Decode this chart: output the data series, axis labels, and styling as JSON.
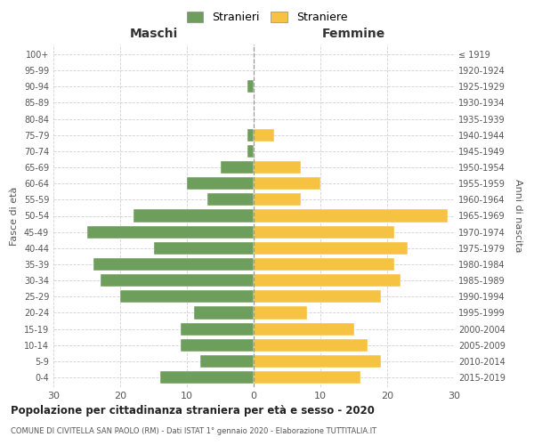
{
  "age_groups": [
    "0-4",
    "5-9",
    "10-14",
    "15-19",
    "20-24",
    "25-29",
    "30-34",
    "35-39",
    "40-44",
    "45-49",
    "50-54",
    "55-59",
    "60-64",
    "65-69",
    "70-74",
    "75-79",
    "80-84",
    "85-89",
    "90-94",
    "95-99",
    "100+"
  ],
  "birth_years": [
    "2015-2019",
    "2010-2014",
    "2005-2009",
    "2000-2004",
    "1995-1999",
    "1990-1994",
    "1985-1989",
    "1980-1984",
    "1975-1979",
    "1970-1974",
    "1965-1969",
    "1960-1964",
    "1955-1959",
    "1950-1954",
    "1945-1949",
    "1940-1944",
    "1935-1939",
    "1930-1934",
    "1925-1929",
    "1920-1924",
    "≤ 1919"
  ],
  "maschi": [
    14,
    8,
    11,
    11,
    9,
    20,
    23,
    24,
    15,
    25,
    18,
    7,
    10,
    5,
    1,
    1,
    0,
    0,
    1,
    0,
    0
  ],
  "femmine": [
    16,
    19,
    17,
    15,
    8,
    19,
    22,
    21,
    23,
    21,
    29,
    7,
    10,
    7,
    0,
    3,
    0,
    0,
    0,
    0,
    0
  ],
  "male_color": "#6d9e5b",
  "female_color": "#f5c242",
  "background_color": "#ffffff",
  "grid_color": "#cccccc",
  "title": "Popolazione per cittadinanza straniera per età e sesso - 2020",
  "subtitle": "COMUNE DI CIVITELLA SAN PAOLO (RM) - Dati ISTAT 1° gennaio 2020 - Elaborazione TUTTITALIA.IT",
  "xlabel_left": "Maschi",
  "xlabel_right": "Femmine",
  "ylabel_left": "Fasce di età",
  "ylabel_right": "Anni di nascita",
  "legend_stranieri": "Stranieri",
  "legend_straniere": "Straniere",
  "xlim": 30
}
